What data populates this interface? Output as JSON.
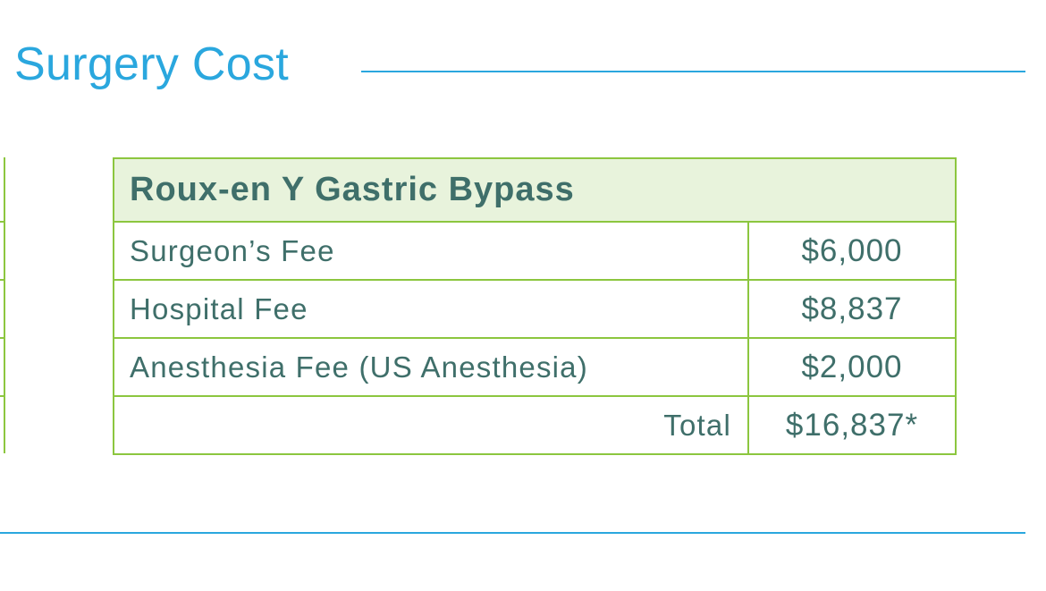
{
  "page": {
    "title": "Surgery Cost"
  },
  "cost_table": {
    "heading": "Roux-en Y Gastric Bypass",
    "rows": [
      {
        "label": "Surgeon’s Fee",
        "amount": "$6,000"
      },
      {
        "label": "Hospital Fee",
        "amount": "$8,837"
      },
      {
        "label": "Anesthesia Fee (US Anesthesia)",
        "amount": "$2,000"
      }
    ],
    "total": {
      "label": "Total",
      "amount": "$16,837*"
    }
  },
  "colors": {
    "title_blue": "#2aa7de",
    "border_green": "#8cc63f",
    "header_fill": "#e8f3dc",
    "text_teal": "#3f6f6a"
  }
}
